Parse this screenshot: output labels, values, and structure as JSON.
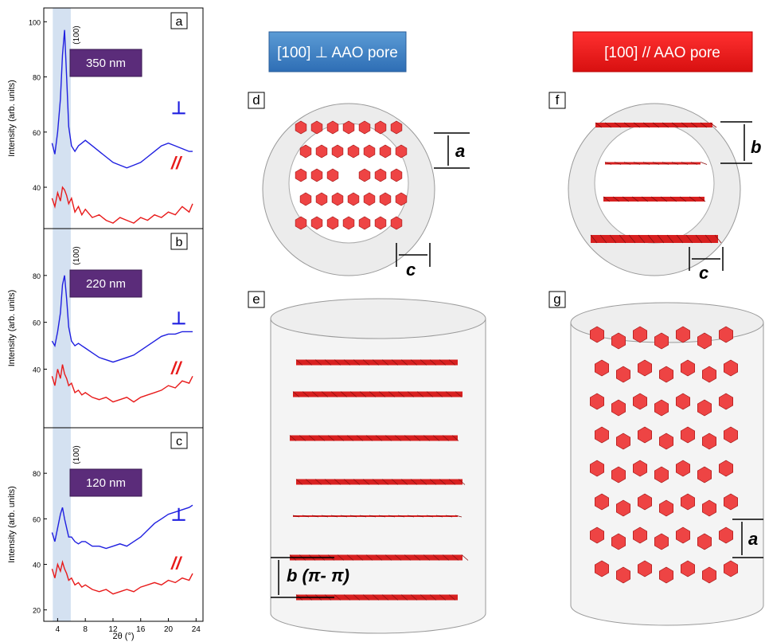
{
  "chart_data": [
    {
      "type": "line",
      "panel": "a",
      "size_label": "350 nm",
      "peak_label": "(100)",
      "ylabel": "Intensity (arb. units)",
      "xlim": [
        2,
        25
      ],
      "ylim": [
        25,
        105
      ],
      "yticks": [
        40,
        60,
        80,
        100
      ],
      "span": [
        3.3,
        5.9
      ],
      "x": [
        3.2,
        3.6,
        4.0,
        4.4,
        4.7,
        5.0,
        5.3,
        5.6,
        6.0,
        6.5,
        7,
        7.5,
        8,
        9,
        10,
        11,
        12,
        13,
        14,
        15,
        16,
        17,
        18,
        19,
        20,
        21,
        22,
        23,
        23.5
      ],
      "series": [
        {
          "name": "⊥",
          "color": "#1f1fe0",
          "values": [
            56,
            52,
            60,
            72,
            88,
            97,
            80,
            62,
            55,
            53,
            55,
            56,
            57,
            55,
            53,
            51,
            49,
            48,
            47,
            48,
            49,
            51,
            53,
            55,
            56,
            55,
            54,
            53,
            53
          ]
        },
        {
          "name": "//",
          "color": "#e81a1a",
          "values": [
            36,
            33,
            38,
            35,
            40,
            39,
            37,
            34,
            36,
            31,
            33,
            30,
            32,
            29,
            30,
            28,
            27,
            29,
            28,
            27,
            29,
            28,
            30,
            29,
            31,
            30,
            33,
            31,
            34
          ]
        }
      ]
    },
    {
      "type": "line",
      "panel": "b",
      "size_label": "220 nm",
      "peak_label": "(100)",
      "ylabel": "Intensity (arb. units)",
      "xlim": [
        2,
        25
      ],
      "ylim": [
        15,
        100
      ],
      "yticks": [
        40,
        60,
        80
      ],
      "span": [
        3.3,
        5.9
      ],
      "x": [
        3.2,
        3.6,
        4.0,
        4.4,
        4.7,
        5.0,
        5.3,
        5.6,
        6.0,
        6.5,
        7,
        7.5,
        8,
        9,
        10,
        11,
        12,
        13,
        14,
        15,
        16,
        17,
        18,
        19,
        20,
        21,
        22,
        23,
        23.5
      ],
      "series": [
        {
          "name": "⊥",
          "color": "#1f1fe0",
          "values": [
            52,
            50,
            56,
            64,
            76,
            80,
            70,
            58,
            52,
            50,
            51,
            50,
            49,
            47,
            45,
            44,
            43,
            44,
            45,
            46,
            48,
            50,
            52,
            54,
            55,
            55,
            56,
            56,
            56
          ]
        },
        {
          "name": "//",
          "color": "#e81a1a",
          "values": [
            37,
            33,
            40,
            36,
            42,
            38,
            36,
            33,
            34,
            30,
            31,
            29,
            30,
            28,
            27,
            28,
            26,
            27,
            28,
            26,
            28,
            29,
            30,
            31,
            33,
            32,
            35,
            34,
            37
          ]
        }
      ]
    },
    {
      "type": "line",
      "panel": "c",
      "size_label": "120 nm",
      "peak_label": "(100)",
      "ylabel": "Intensity (arb. units)",
      "xlabel": "2θ (°)",
      "xlim": [
        2,
        25
      ],
      "ylim": [
        15,
        100
      ],
      "yticks": [
        20,
        40,
        60,
        80
      ],
      "xticks": [
        4,
        8,
        12,
        16,
        20,
        24
      ],
      "span": [
        3.3,
        5.9
      ],
      "x": [
        3.2,
        3.6,
        4.0,
        4.4,
        4.7,
        5.0,
        5.3,
        5.6,
        6.0,
        6.5,
        7,
        7.5,
        8,
        9,
        10,
        11,
        12,
        13,
        14,
        15,
        16,
        17,
        18,
        19,
        20,
        21,
        22,
        23,
        23.5
      ],
      "series": [
        {
          "name": "⊥",
          "color": "#1f1fe0",
          "values": [
            54,
            50,
            56,
            62,
            65,
            60,
            56,
            52,
            52,
            50,
            49,
            50,
            50,
            48,
            48,
            47,
            48,
            49,
            48,
            50,
            52,
            55,
            58,
            60,
            62,
            63,
            64,
            65,
            66
          ]
        },
        {
          "name": "//",
          "color": "#e81a1a",
          "values": [
            38,
            34,
            40,
            37,
            41,
            38,
            36,
            33,
            34,
            31,
            32,
            30,
            31,
            29,
            28,
            29,
            27,
            28,
            29,
            28,
            30,
            31,
            32,
            31,
            33,
            32,
            34,
            33,
            36
          ]
        }
      ]
    }
  ],
  "diagrams": {
    "left_title": "[100] ⊥ AAO pore",
    "right_title": "[100] // AAO pore",
    "panel_d": "d",
    "panel_e": "e",
    "panel_f": "f",
    "panel_g": "g",
    "d_a": "a",
    "d_c": "c",
    "f_b": "b",
    "f_c": "c",
    "e_b": "b (π- π)",
    "g_a": "a"
  }
}
